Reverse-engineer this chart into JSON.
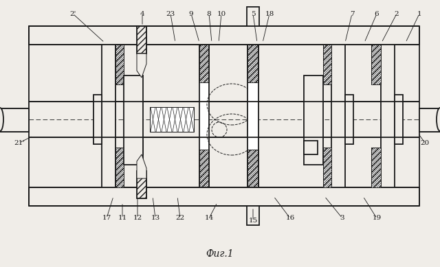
{
  "bg_color": "#f0ede8",
  "lc": "#1a1a1a",
  "title": "Фиг.1",
  "figw": 6.4,
  "figh": 3.89,
  "dpi": 100,
  "labels_top": [
    [
      "2'",
      106,
      20,
      152,
      62
    ],
    [
      "4",
      207,
      20,
      207,
      38
    ],
    [
      "23",
      248,
      20,
      255,
      62
    ],
    [
      "9",
      278,
      20,
      290,
      62
    ],
    [
      "8",
      304,
      20,
      308,
      62
    ],
    [
      "10",
      322,
      20,
      318,
      62
    ],
    [
      "5",
      368,
      20,
      374,
      62
    ],
    [
      "18",
      392,
      20,
      382,
      62
    ],
    [
      "7",
      512,
      20,
      502,
      62
    ],
    [
      "6",
      548,
      20,
      530,
      62
    ],
    [
      "2",
      577,
      20,
      555,
      62
    ],
    [
      "1",
      610,
      20,
      590,
      62
    ]
  ],
  "labels_bot": [
    [
      "17",
      155,
      318,
      165,
      286
    ],
    [
      "11",
      178,
      318,
      178,
      295
    ],
    [
      "12",
      200,
      318,
      200,
      286
    ],
    [
      "13",
      226,
      318,
      222,
      286
    ],
    [
      "22",
      262,
      318,
      258,
      286
    ],
    [
      "14",
      304,
      318,
      316,
      295
    ],
    [
      "15",
      368,
      322,
      368,
      302
    ],
    [
      "16",
      422,
      318,
      398,
      286
    ],
    [
      "3",
      498,
      318,
      472,
      286
    ],
    [
      "19",
      548,
      318,
      528,
      286
    ]
  ],
  "labels_side": [
    [
      "20",
      618,
      208,
      608,
      194
    ],
    [
      "21'",
      28,
      208,
      48,
      198
    ]
  ]
}
